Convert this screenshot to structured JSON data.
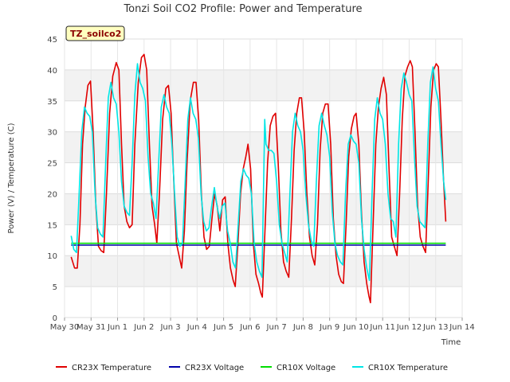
{
  "chart_data": {
    "type": "line",
    "title": "Tonzi Soil CO2 Profile: Power and Temperature",
    "site_label": "TZ_soilco2",
    "xlabel": "Time",
    "ylabel": "Power (V) / Temperature (C)",
    "ylim": [
      0,
      45
    ],
    "y_ticks": [
      0,
      5,
      10,
      15,
      20,
      25,
      30,
      35,
      40,
      45
    ],
    "xlim": [
      0,
      15
    ],
    "x_ticks": [
      {
        "x": 0,
        "label": "May 30"
      },
      {
        "x": 1,
        "label": "May 31"
      },
      {
        "x": 2,
        "label": "Jun 1"
      },
      {
        "x": 3,
        "label": "Jun 2"
      },
      {
        "x": 4,
        "label": "Jun 3"
      },
      {
        "x": 5,
        "label": "Jun 4"
      },
      {
        "x": 6,
        "label": "Jun 5"
      },
      {
        "x": 7,
        "label": "Jun 6"
      },
      {
        "x": 8,
        "label": "Jun 7"
      },
      {
        "x": 9,
        "label": "Jun 8"
      },
      {
        "x": 10,
        "label": "Jun 9"
      },
      {
        "x": 11,
        "label": "Jun 10"
      },
      {
        "x": 12,
        "label": "Jun 11"
      },
      {
        "x": 13,
        "label": "Jun 12"
      },
      {
        "x": 14,
        "label": "Jun 13"
      },
      {
        "x": 15,
        "label": "Jun 14"
      }
    ],
    "grid": true,
    "legend_position": "bottom",
    "series": [
      {
        "name": "CR23X Temperature",
        "color": "#e00000",
        "points": [
          [
            0.25,
            9.8
          ],
          [
            0.38,
            8.0
          ],
          [
            0.48,
            8.0
          ],
          [
            0.58,
            15.0
          ],
          [
            0.68,
            28.0
          ],
          [
            0.78,
            34.0
          ],
          [
            0.88,
            37.5
          ],
          [
            0.98,
            38.2
          ],
          [
            1.08,
            30.0
          ],
          [
            1.18,
            18.0
          ],
          [
            1.28,
            11.5
          ],
          [
            1.38,
            10.8
          ],
          [
            1.48,
            10.5
          ],
          [
            1.58,
            20.0
          ],
          [
            1.7,
            33.0
          ],
          [
            1.82,
            39.0
          ],
          [
            1.95,
            41.2
          ],
          [
            2.05,
            40.0
          ],
          [
            2.15,
            28.0
          ],
          [
            2.25,
            18.0
          ],
          [
            2.35,
            15.5
          ],
          [
            2.45,
            14.5
          ],
          [
            2.55,
            15.0
          ],
          [
            2.65,
            28.0
          ],
          [
            2.78,
            38.0
          ],
          [
            2.9,
            42.0
          ],
          [
            3.0,
            42.5
          ],
          [
            3.1,
            40.0
          ],
          [
            3.2,
            28.0
          ],
          [
            3.3,
            18.0
          ],
          [
            3.4,
            15.0
          ],
          [
            3.48,
            12.0
          ],
          [
            3.58,
            20.0
          ],
          [
            3.7,
            32.0
          ],
          [
            3.82,
            37.0
          ],
          [
            3.92,
            37.5
          ],
          [
            4.02,
            33.0
          ],
          [
            4.12,
            22.0
          ],
          [
            4.22,
            12.0
          ],
          [
            4.32,
            10.0
          ],
          [
            4.42,
            8.0
          ],
          [
            4.52,
            14.0
          ],
          [
            4.62,
            25.0
          ],
          [
            4.74,
            35.0
          ],
          [
            4.86,
            38.0
          ],
          [
            4.96,
            38.0
          ],
          [
            5.06,
            32.0
          ],
          [
            5.16,
            20.0
          ],
          [
            5.26,
            13.0
          ],
          [
            5.36,
            11.0
          ],
          [
            5.46,
            11.5
          ],
          [
            5.56,
            16.0
          ],
          [
            5.66,
            20.0
          ],
          [
            5.76,
            18.0
          ],
          [
            5.86,
            14.0
          ],
          [
            5.96,
            19.0
          ],
          [
            6.06,
            19.5
          ],
          [
            6.16,
            12.0
          ],
          [
            6.26,
            8.0
          ],
          [
            6.36,
            6.0
          ],
          [
            6.44,
            5.0
          ],
          [
            6.54,
            12.0
          ],
          [
            6.64,
            20.0
          ],
          [
            6.74,
            24.0
          ],
          [
            6.84,
            26.0
          ],
          [
            6.92,
            28.0
          ],
          [
            7.02,
            24.0
          ],
          [
            7.12,
            12.0
          ],
          [
            7.22,
            7.0
          ],
          [
            7.32,
            5.5
          ],
          [
            7.4,
            4.0
          ],
          [
            7.46,
            3.3
          ],
          [
            7.56,
            14.0
          ],
          [
            7.66,
            25.0
          ],
          [
            7.76,
            31.0
          ],
          [
            7.86,
            32.5
          ],
          [
            7.96,
            33.0
          ],
          [
            8.06,
            25.0
          ],
          [
            8.16,
            14.0
          ],
          [
            8.26,
            9.0
          ],
          [
            8.36,
            7.5
          ],
          [
            8.46,
            6.5
          ],
          [
            8.56,
            16.0
          ],
          [
            8.66,
            27.0
          ],
          [
            8.76,
            33.0
          ],
          [
            8.86,
            35.5
          ],
          [
            8.94,
            35.5
          ],
          [
            9.04,
            30.0
          ],
          [
            9.14,
            20.0
          ],
          [
            9.24,
            13.0
          ],
          [
            9.34,
            10.0
          ],
          [
            9.44,
            8.5
          ],
          [
            9.54,
            15.0
          ],
          [
            9.64,
            27.0
          ],
          [
            9.74,
            33.0
          ],
          [
            9.84,
            34.5
          ],
          [
            9.94,
            34.5
          ],
          [
            10.04,
            28.0
          ],
          [
            10.14,
            16.0
          ],
          [
            10.24,
            10.0
          ],
          [
            10.34,
            7.0
          ],
          [
            10.44,
            5.8
          ],
          [
            10.52,
            5.5
          ],
          [
            10.62,
            15.0
          ],
          [
            10.72,
            26.0
          ],
          [
            10.82,
            30.5
          ],
          [
            10.92,
            32.5
          ],
          [
            11.0,
            33.0
          ],
          [
            11.1,
            28.0
          ],
          [
            11.2,
            17.0
          ],
          [
            11.3,
            9.0
          ],
          [
            11.4,
            5.5
          ],
          [
            11.48,
            3.5
          ],
          [
            11.54,
            2.4
          ],
          [
            11.64,
            15.0
          ],
          [
            11.74,
            28.0
          ],
          [
            11.84,
            34.0
          ],
          [
            11.94,
            37.0
          ],
          [
            12.04,
            38.8
          ],
          [
            12.14,
            36.0
          ],
          [
            12.24,
            24.0
          ],
          [
            12.34,
            13.0
          ],
          [
            12.44,
            11.5
          ],
          [
            12.54,
            10.0
          ],
          [
            12.64,
            20.0
          ],
          [
            12.74,
            32.0
          ],
          [
            12.84,
            39.0
          ],
          [
            12.94,
            40.5
          ],
          [
            13.04,
            41.5
          ],
          [
            13.12,
            40.5
          ],
          [
            13.22,
            30.0
          ],
          [
            13.32,
            18.0
          ],
          [
            13.42,
            13.0
          ],
          [
            13.52,
            11.5
          ],
          [
            13.62,
            10.5
          ],
          [
            13.72,
            22.0
          ],
          [
            13.82,
            34.0
          ],
          [
            13.92,
            40.0
          ],
          [
            14.02,
            41.0
          ],
          [
            14.1,
            40.5
          ],
          [
            14.2,
            32.0
          ],
          [
            14.3,
            22.0
          ],
          [
            14.38,
            15.5
          ]
        ]
      },
      {
        "name": "CR23X Voltage",
        "color": "#0000aa",
        "points": [
          [
            0.25,
            11.7
          ],
          [
            14.38,
            11.7
          ]
        ]
      },
      {
        "name": "CR10X Voltage",
        "color": "#00dd00",
        "points": [
          [
            0.25,
            12.0
          ],
          [
            14.38,
            12.0
          ]
        ]
      },
      {
        "name": "CR10X Temperature",
        "color": "#00e5e5",
        "points": [
          [
            0.25,
            13.2
          ],
          [
            0.35,
            11.0
          ],
          [
            0.45,
            10.5
          ],
          [
            0.55,
            20.0
          ],
          [
            0.65,
            30.0
          ],
          [
            0.75,
            34.0
          ],
          [
            0.85,
            33.0
          ],
          [
            0.95,
            32.5
          ],
          [
            1.05,
            30.0
          ],
          [
            1.15,
            20.0
          ],
          [
            1.25,
            14.5
          ],
          [
            1.35,
            13.5
          ],
          [
            1.45,
            13.0
          ],
          [
            1.55,
            25.0
          ],
          [
            1.65,
            35.5
          ],
          [
            1.75,
            38.0
          ],
          [
            1.85,
            35.5
          ],
          [
            1.95,
            34.5
          ],
          [
            2.05,
            30.0
          ],
          [
            2.15,
            22.0
          ],
          [
            2.25,
            18.0
          ],
          [
            2.35,
            17.0
          ],
          [
            2.45,
            16.5
          ],
          [
            2.55,
            25.0
          ],
          [
            2.65,
            36.0
          ],
          [
            2.75,
            41.0
          ],
          [
            2.85,
            38.0
          ],
          [
            2.95,
            37.0
          ],
          [
            3.05,
            35.0
          ],
          [
            3.15,
            26.0
          ],
          [
            3.25,
            20.0
          ],
          [
            3.35,
            18.5
          ],
          [
            3.45,
            16.0
          ],
          [
            3.55,
            25.0
          ],
          [
            3.65,
            34.0
          ],
          [
            3.75,
            36.0
          ],
          [
            3.85,
            34.0
          ],
          [
            3.95,
            33.0
          ],
          [
            4.05,
            28.0
          ],
          [
            4.15,
            20.0
          ],
          [
            4.25,
            13.0
          ],
          [
            4.35,
            11.5
          ],
          [
            4.45,
            12.0
          ],
          [
            4.55,
            22.0
          ],
          [
            4.65,
            32.0
          ],
          [
            4.75,
            35.5
          ],
          [
            4.85,
            33.0
          ],
          [
            4.95,
            32.0
          ],
          [
            5.05,
            29.0
          ],
          [
            5.15,
            20.0
          ],
          [
            5.25,
            15.5
          ],
          [
            5.35,
            14.0
          ],
          [
            5.45,
            14.5
          ],
          [
            5.55,
            18.0
          ],
          [
            5.65,
            21.0
          ],
          [
            5.75,
            18.0
          ],
          [
            5.85,
            16.0
          ],
          [
            5.95,
            18.0
          ],
          [
            6.05,
            18.5
          ],
          [
            6.15,
            14.0
          ],
          [
            6.25,
            12.0
          ],
          [
            6.35,
            9.0
          ],
          [
            6.45,
            8.0
          ],
          [
            6.55,
            15.0
          ],
          [
            6.65,
            22.0
          ],
          [
            6.75,
            24.0
          ],
          [
            6.85,
            23.0
          ],
          [
            6.95,
            22.5
          ],
          [
            7.05,
            20.0
          ],
          [
            7.15,
            12.0
          ],
          [
            7.25,
            9.0
          ],
          [
            7.35,
            7.5
          ],
          [
            7.45,
            6.5
          ],
          [
            7.55,
            32.0
          ],
          [
            7.6,
            28.0
          ],
          [
            7.7,
            27.0
          ],
          [
            7.8,
            27.0
          ],
          [
            7.9,
            26.5
          ],
          [
            8.0,
            22.0
          ],
          [
            8.1,
            15.0
          ],
          [
            8.2,
            12.0
          ],
          [
            8.3,
            10.5
          ],
          [
            8.4,
            9.0
          ],
          [
            8.5,
            20.0
          ],
          [
            8.6,
            30.0
          ],
          [
            8.7,
            33.0
          ],
          [
            8.8,
            31.0
          ],
          [
            8.9,
            30.0
          ],
          [
            9.0,
            27.0
          ],
          [
            9.1,
            20.0
          ],
          [
            9.2,
            15.0
          ],
          [
            9.3,
            12.5
          ],
          [
            9.4,
            11.5
          ],
          [
            9.5,
            22.0
          ],
          [
            9.6,
            31.0
          ],
          [
            9.7,
            33.0
          ],
          [
            9.8,
            31.0
          ],
          [
            9.9,
            29.5
          ],
          [
            10.0,
            26.0
          ],
          [
            10.1,
            17.0
          ],
          [
            10.2,
            12.0
          ],
          [
            10.3,
            10.0
          ],
          [
            10.4,
            9.0
          ],
          [
            10.5,
            8.5
          ],
          [
            10.6,
            20.0
          ],
          [
            10.7,
            28.0
          ],
          [
            10.8,
            29.5
          ],
          [
            10.9,
            28.5
          ],
          [
            11.0,
            28.0
          ],
          [
            11.1,
            25.0
          ],
          [
            11.2,
            16.0
          ],
          [
            11.3,
            11.0
          ],
          [
            11.4,
            8.0
          ],
          [
            11.5,
            6.0
          ],
          [
            11.6,
            20.0
          ],
          [
            11.7,
            32.0
          ],
          [
            11.8,
            35.5
          ],
          [
            11.9,
            33.0
          ],
          [
            12.0,
            32.0
          ],
          [
            12.1,
            28.0
          ],
          [
            12.2,
            20.0
          ],
          [
            12.3,
            16.0
          ],
          [
            12.4,
            15.5
          ],
          [
            12.5,
            13.0
          ],
          [
            12.6,
            28.0
          ],
          [
            12.7,
            37.0
          ],
          [
            12.8,
            39.5
          ],
          [
            12.9,
            38.0
          ],
          [
            13.0,
            36.0
          ],
          [
            13.1,
            35.0
          ],
          [
            13.2,
            26.0
          ],
          [
            13.3,
            18.0
          ],
          [
            13.4,
            15.5
          ],
          [
            13.5,
            15.0
          ],
          [
            13.6,
            14.5
          ],
          [
            13.7,
            28.0
          ],
          [
            13.8,
            38.0
          ],
          [
            13.9,
            40.5
          ],
          [
            14.0,
            37.0
          ],
          [
            14.1,
            35.0
          ],
          [
            14.2,
            28.0
          ],
          [
            14.3,
            22.0
          ],
          [
            14.38,
            19.0
          ]
        ]
      }
    ]
  }
}
